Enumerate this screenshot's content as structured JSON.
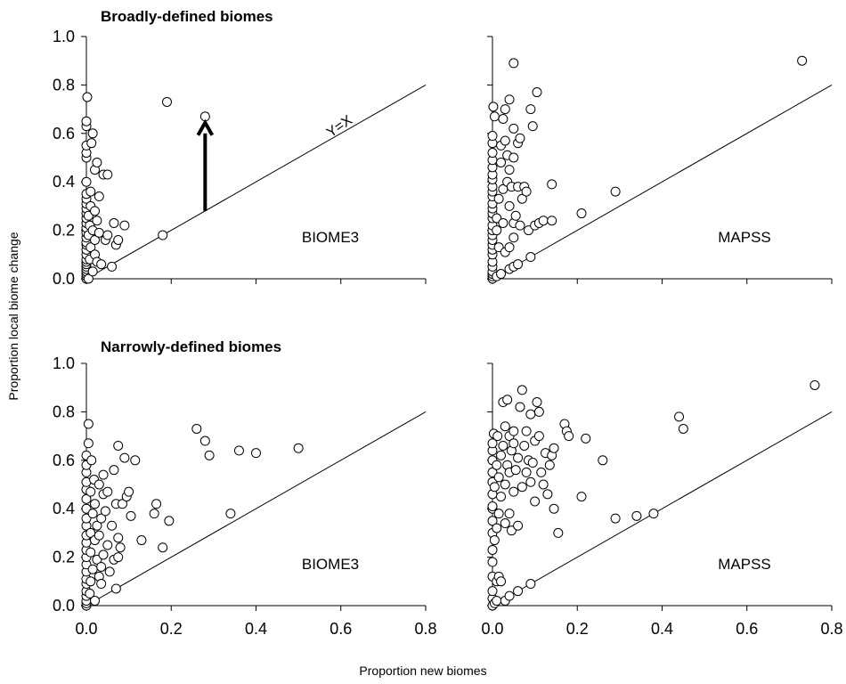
{
  "axis_titles": {
    "y": "Proportion local biome change",
    "x": "Proportion new biomes"
  },
  "section_titles": {
    "top": "Broadly-defined biomes",
    "bottom": "Narrowly-defined biomes"
  },
  "refline_label": "Y=X",
  "chart_data": [
    {
      "type": "scatter",
      "id": "broad-biome3",
      "section": "Broadly-defined biomes",
      "label": "BIOME3",
      "xlim": [
        0,
        0.8
      ],
      "ylim": [
        0,
        1.0
      ],
      "xticks": [
        "0.0",
        "0.2",
        "0.4",
        "0.6",
        "0.8"
      ],
      "yticks": [
        "0.0",
        "0.2",
        "0.4",
        "0.6",
        "0.8",
        "1.0"
      ],
      "reference_line": "y = x",
      "arrow": {
        "x": 0.28,
        "from_y": 0.28,
        "to_y": 0.67
      },
      "points": [
        [
          0,
          0
        ],
        [
          0,
          0.01
        ],
        [
          0,
          0.02
        ],
        [
          0,
          0.03
        ],
        [
          0,
          0.04
        ],
        [
          0,
          0.05
        ],
        [
          0,
          0.06
        ],
        [
          0,
          0.07
        ],
        [
          0,
          0.08
        ],
        [
          0,
          0.1
        ],
        [
          0,
          0.12
        ],
        [
          0,
          0.14
        ],
        [
          0,
          0.15
        ],
        [
          0,
          0.17
        ],
        [
          0,
          0.19
        ],
        [
          0,
          0.21
        ],
        [
          0,
          0.23
        ],
        [
          0,
          0.25
        ],
        [
          0,
          0.27
        ],
        [
          0,
          0.29
        ],
        [
          0,
          0.31
        ],
        [
          0,
          0.33
        ],
        [
          0,
          0.35
        ],
        [
          0,
          0.4
        ],
        [
          0,
          0.5
        ],
        [
          0,
          0.52
        ],
        [
          0,
          0.55
        ],
        [
          0,
          0.63
        ],
        [
          0,
          0.65
        ],
        [
          0.002,
          0.75
        ],
        [
          0.005,
          0.0
        ],
        [
          0.005,
          0.18
        ],
        [
          0.005,
          0.26
        ],
        [
          0.008,
          0.08
        ],
        [
          0.008,
          0.22
        ],
        [
          0.01,
          0.13
        ],
        [
          0.01,
          0.3
        ],
        [
          0.01,
          0.36
        ],
        [
          0.012,
          0.56
        ],
        [
          0.015,
          0.03
        ],
        [
          0.015,
          0.2
        ],
        [
          0.015,
          0.6
        ],
        [
          0.02,
          0.1
        ],
        [
          0.02,
          0.16
        ],
        [
          0.02,
          0.28
        ],
        [
          0.02,
          0.45
        ],
        [
          0.025,
          0.07
        ],
        [
          0.025,
          0.24
        ],
        [
          0.025,
          0.48
        ],
        [
          0.03,
          0.19
        ],
        [
          0.03,
          0.34
        ],
        [
          0.035,
          0.06
        ],
        [
          0.04,
          0.43
        ],
        [
          0.045,
          0.16
        ],
        [
          0.05,
          0.43
        ],
        [
          0.05,
          0.18
        ],
        [
          0.06,
          0.05
        ],
        [
          0.065,
          0.23
        ],
        [
          0.07,
          0.14
        ],
        [
          0.075,
          0.16
        ],
        [
          0.09,
          0.22
        ],
        [
          0.18,
          0.18
        ],
        [
          0.19,
          0.73
        ],
        [
          0.28,
          0.67
        ]
      ]
    },
    {
      "type": "scatter",
      "id": "broad-mapss",
      "section": "Broadly-defined biomes",
      "label": "MAPSS",
      "xlim": [
        0,
        0.8
      ],
      "ylim": [
        0,
        1.0
      ],
      "reference_line": "y = x",
      "points": [
        [
          0,
          0
        ],
        [
          0,
          0.01
        ],
        [
          0,
          0.02
        ],
        [
          0,
          0.03
        ],
        [
          0,
          0.05
        ],
        [
          0,
          0.07
        ],
        [
          0,
          0.1
        ],
        [
          0,
          0.12
        ],
        [
          0,
          0.14
        ],
        [
          0,
          0.16
        ],
        [
          0,
          0.18
        ],
        [
          0,
          0.2
        ],
        [
          0,
          0.22
        ],
        [
          0,
          0.25
        ],
        [
          0,
          0.27
        ],
        [
          0,
          0.29
        ],
        [
          0,
          0.31
        ],
        [
          0,
          0.34
        ],
        [
          0,
          0.36
        ],
        [
          0,
          0.38
        ],
        [
          0,
          0.41
        ],
        [
          0,
          0.43
        ],
        [
          0,
          0.46
        ],
        [
          0,
          0.49
        ],
        [
          0,
          0.52
        ],
        [
          0,
          0.56
        ],
        [
          0,
          0.59
        ],
        [
          0.002,
          0.71
        ],
        [
          0.005,
          0.67
        ],
        [
          0.01,
          0.01
        ],
        [
          0.01,
          0.2
        ],
        [
          0.01,
          0.25
        ],
        [
          0.015,
          0.13
        ],
        [
          0.015,
          0.33
        ],
        [
          0.02,
          0.02
        ],
        [
          0.02,
          0.48
        ],
        [
          0.02,
          0.55
        ],
        [
          0.025,
          0.23
        ],
        [
          0.025,
          0.37
        ],
        [
          0.025,
          0.66
        ],
        [
          0.03,
          0.11
        ],
        [
          0.03,
          0.57
        ],
        [
          0.03,
          0.7
        ],
        [
          0.035,
          0.4
        ],
        [
          0.035,
          0.51
        ],
        [
          0.04,
          0.04
        ],
        [
          0.04,
          0.13
        ],
        [
          0.04,
          0.3
        ],
        [
          0.04,
          0.45
        ],
        [
          0.04,
          0.74
        ],
        [
          0.045,
          0.38
        ],
        [
          0.05,
          0.05
        ],
        [
          0.05,
          0.17
        ],
        [
          0.05,
          0.23
        ],
        [
          0.05,
          0.5
        ],
        [
          0.05,
          0.62
        ],
        [
          0.05,
          0.89
        ],
        [
          0.055,
          0.26
        ],
        [
          0.06,
          0.06
        ],
        [
          0.06,
          0.38
        ],
        [
          0.06,
          0.56
        ],
        [
          0.065,
          0.22
        ],
        [
          0.065,
          0.58
        ],
        [
          0.07,
          0.33
        ],
        [
          0.075,
          0.38
        ],
        [
          0.08,
          0.36
        ],
        [
          0.085,
          0.2
        ],
        [
          0.09,
          0.7
        ],
        [
          0.09,
          0.09
        ],
        [
          0.095,
          0.63
        ],
        [
          0.1,
          0.22
        ],
        [
          0.105,
          0.77
        ],
        [
          0.11,
          0.23
        ],
        [
          0.12,
          0.24
        ],
        [
          0.14,
          0.24
        ],
        [
          0.14,
          0.39
        ],
        [
          0.21,
          0.27
        ],
        [
          0.29,
          0.36
        ],
        [
          0.73,
          0.9
        ]
      ]
    },
    {
      "type": "scatter",
      "id": "narrow-biome3",
      "section": "Narrowly-defined biomes",
      "label": "BIOME3",
      "xlim": [
        0,
        0.8
      ],
      "ylim": [
        0,
        1.0
      ],
      "reference_line": "y = x",
      "points": [
        [
          0,
          0
        ],
        [
          0,
          0.01
        ],
        [
          0,
          0.02
        ],
        [
          0,
          0.04
        ],
        [
          0,
          0.06
        ],
        [
          0,
          0.09
        ],
        [
          0,
          0.11
        ],
        [
          0,
          0.14
        ],
        [
          0,
          0.17
        ],
        [
          0,
          0.2
        ],
        [
          0,
          0.23
        ],
        [
          0,
          0.26
        ],
        [
          0,
          0.29
        ],
        [
          0,
          0.33
        ],
        [
          0,
          0.36
        ],
        [
          0,
          0.4
        ],
        [
          0,
          0.44
        ],
        [
          0,
          0.48
        ],
        [
          0,
          0.51
        ],
        [
          0,
          0.55
        ],
        [
          0,
          0.58
        ],
        [
          0,
          0.62
        ],
        [
          0.005,
          0.67
        ],
        [
          0.005,
          0.75
        ],
        [
          0.008,
          0.05
        ],
        [
          0.01,
          0.1
        ],
        [
          0.01,
          0.22
        ],
        [
          0.01,
          0.3
        ],
        [
          0.01,
          0.47
        ],
        [
          0.012,
          0.6
        ],
        [
          0.015,
          0.15
        ],
        [
          0.015,
          0.38
        ],
        [
          0.018,
          0.52
        ],
        [
          0.02,
          0.02
        ],
        [
          0.02,
          0.27
        ],
        [
          0.02,
          0.42
        ],
        [
          0.025,
          0.19
        ],
        [
          0.025,
          0.33
        ],
        [
          0.03,
          0.12
        ],
        [
          0.03,
          0.29
        ],
        [
          0.03,
          0.5
        ],
        [
          0.035,
          0.09
        ],
        [
          0.035,
          0.16
        ],
        [
          0.035,
          0.36
        ],
        [
          0.04,
          0.21
        ],
        [
          0.04,
          0.46
        ],
        [
          0.04,
          0.54
        ],
        [
          0.045,
          0.39
        ],
        [
          0.05,
          0.25
        ],
        [
          0.05,
          0.47
        ],
        [
          0.055,
          0.14
        ],
        [
          0.06,
          0.33
        ],
        [
          0.065,
          0.19
        ],
        [
          0.065,
          0.56
        ],
        [
          0.07,
          0.42
        ],
        [
          0.07,
          0.07
        ],
        [
          0.075,
          0.2
        ],
        [
          0.075,
          0.28
        ],
        [
          0.075,
          0.66
        ],
        [
          0.08,
          0.24
        ],
        [
          0.085,
          0.42
        ],
        [
          0.09,
          0.61
        ],
        [
          0.095,
          0.45
        ],
        [
          0.1,
          0.47
        ],
        [
          0.105,
          0.37
        ],
        [
          0.115,
          0.6
        ],
        [
          0.13,
          0.27
        ],
        [
          0.16,
          0.38
        ],
        [
          0.165,
          0.42
        ],
        [
          0.18,
          0.24
        ],
        [
          0.195,
          0.35
        ],
        [
          0.26,
          0.73
        ],
        [
          0.28,
          0.68
        ],
        [
          0.29,
          0.62
        ],
        [
          0.34,
          0.38
        ],
        [
          0.36,
          0.64
        ],
        [
          0.4,
          0.63
        ],
        [
          0.5,
          0.65
        ]
      ]
    },
    {
      "type": "scatter",
      "id": "narrow-mapss",
      "section": "Narrowly-defined biomes",
      "label": "MAPSS",
      "xlim": [
        0,
        0.8
      ],
      "ylim": [
        0,
        1.0
      ],
      "reference_line": "y = x",
      "points": [
        [
          0,
          0
        ],
        [
          0,
          0.03
        ],
        [
          0,
          0.06
        ],
        [
          0,
          0.12
        ],
        [
          0,
          0.18
        ],
        [
          0,
          0.23
        ],
        [
          0,
          0.3
        ],
        [
          0,
          0.35
        ],
        [
          0,
          0.4
        ],
        [
          0,
          0.41
        ],
        [
          0,
          0.46
        ],
        [
          0,
          0.51
        ],
        [
          0,
          0.55
        ],
        [
          0,
          0.6
        ],
        [
          0,
          0.64
        ],
        [
          0,
          0.67
        ],
        [
          0.003,
          0.71
        ],
        [
          0.005,
          0.01
        ],
        [
          0.005,
          0.27
        ],
        [
          0.005,
          0.49
        ],
        [
          0.01,
          0.02
        ],
        [
          0.01,
          0.1
        ],
        [
          0.01,
          0.32
        ],
        [
          0.01,
          0.58
        ],
        [
          0.012,
          0.7
        ],
        [
          0.015,
          0.12
        ],
        [
          0.015,
          0.38
        ],
        [
          0.015,
          0.53
        ],
        [
          0.02,
          0.1
        ],
        [
          0.02,
          0.45
        ],
        [
          0.02,
          0.62
        ],
        [
          0.025,
          0.66
        ],
        [
          0.025,
          0.84
        ],
        [
          0.03,
          0.02
        ],
        [
          0.03,
          0.34
        ],
        [
          0.03,
          0.5
        ],
        [
          0.03,
          0.74
        ],
        [
          0.035,
          0.85
        ],
        [
          0.035,
          0.58
        ],
        [
          0.04,
          0.04
        ],
        [
          0.04,
          0.38
        ],
        [
          0.04,
          0.55
        ],
        [
          0.04,
          0.7
        ],
        [
          0.045,
          0.64
        ],
        [
          0.045,
          0.31
        ],
        [
          0.05,
          0.47
        ],
        [
          0.05,
          0.67
        ],
        [
          0.05,
          0.72
        ],
        [
          0.055,
          0.56
        ],
        [
          0.06,
          0.06
        ],
        [
          0.06,
          0.33
        ],
        [
          0.06,
          0.61
        ],
        [
          0.065,
          0.82
        ],
        [
          0.07,
          0.49
        ],
        [
          0.07,
          0.89
        ],
        [
          0.075,
          0.66
        ],
        [
          0.08,
          0.55
        ],
        [
          0.08,
          0.72
        ],
        [
          0.085,
          0.6
        ],
        [
          0.09,
          0.51
        ],
        [
          0.09,
          0.79
        ],
        [
          0.09,
          0.09
        ],
        [
          0.095,
          0.59
        ],
        [
          0.1,
          0.68
        ],
        [
          0.1,
          0.43
        ],
        [
          0.105,
          0.84
        ],
        [
          0.11,
          0.7
        ],
        [
          0.11,
          0.8
        ],
        [
          0.115,
          0.55
        ],
        [
          0.12,
          0.5
        ],
        [
          0.125,
          0.63
        ],
        [
          0.13,
          0.46
        ],
        [
          0.135,
          0.58
        ],
        [
          0.14,
          0.62
        ],
        [
          0.145,
          0.65
        ],
        [
          0.145,
          0.4
        ],
        [
          0.155,
          0.3
        ],
        [
          0.17,
          0.75
        ],
        [
          0.175,
          0.72
        ],
        [
          0.18,
          0.7
        ],
        [
          0.21,
          0.45
        ],
        [
          0.22,
          0.69
        ],
        [
          0.26,
          0.6
        ],
        [
          0.29,
          0.36
        ],
        [
          0.34,
          0.37
        ],
        [
          0.38,
          0.38
        ],
        [
          0.44,
          0.78
        ],
        [
          0.45,
          0.73
        ],
        [
          0.76,
          0.91
        ]
      ]
    }
  ]
}
